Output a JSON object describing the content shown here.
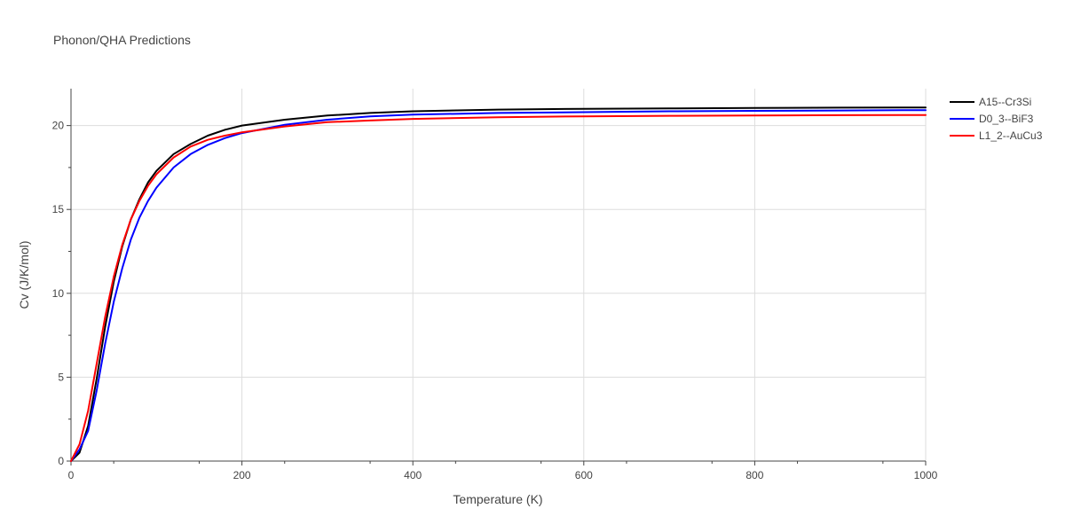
{
  "chart_data": {
    "type": "line",
    "title": "Phonon/QHA Predictions",
    "xlabel": "Temperature (K)",
    "ylabel": "Cv (J/K/mol)",
    "xlim": [
      0,
      1000
    ],
    "ylim": [
      0,
      22.2
    ],
    "x_ticks": [
      0,
      200,
      400,
      600,
      800,
      1000
    ],
    "y_ticks": [
      0,
      5,
      10,
      15,
      20
    ],
    "grid": true,
    "legend_position": "right",
    "x": [
      0,
      10,
      20,
      30,
      40,
      50,
      60,
      70,
      80,
      90,
      100,
      120,
      140,
      160,
      180,
      200,
      250,
      300,
      350,
      400,
      500,
      600,
      700,
      800,
      900,
      1000
    ],
    "series": [
      {
        "name": "A15--Cr3Si",
        "color": "#000000",
        "values": [
          0,
          0.5,
          2.1,
          4.9,
          8.0,
          10.7,
          12.8,
          14.4,
          15.6,
          16.6,
          17.3,
          18.3,
          18.9,
          19.4,
          19.75,
          20.0,
          20.35,
          20.6,
          20.75,
          20.85,
          20.95,
          21.0,
          21.02,
          21.05,
          21.07,
          21.08
        ]
      },
      {
        "name": "D0_3--BiF3",
        "color": "#0000ff",
        "values": [
          0,
          0.7,
          1.8,
          4.2,
          7.0,
          9.5,
          11.5,
          13.2,
          14.5,
          15.5,
          16.3,
          17.5,
          18.3,
          18.85,
          19.25,
          19.55,
          20.05,
          20.35,
          20.55,
          20.65,
          20.75,
          20.8,
          20.85,
          20.88,
          20.9,
          20.92
        ]
      },
      {
        "name": "L1_2--AuCu3",
        "color": "#ff0000",
        "values": [
          0,
          1.0,
          3.0,
          5.8,
          8.6,
          11.0,
          12.9,
          14.4,
          15.5,
          16.4,
          17.1,
          18.1,
          18.75,
          19.15,
          19.4,
          19.6,
          19.95,
          20.2,
          20.3,
          20.4,
          20.5,
          20.55,
          20.58,
          20.6,
          20.62,
          20.63
        ]
      }
    ]
  }
}
